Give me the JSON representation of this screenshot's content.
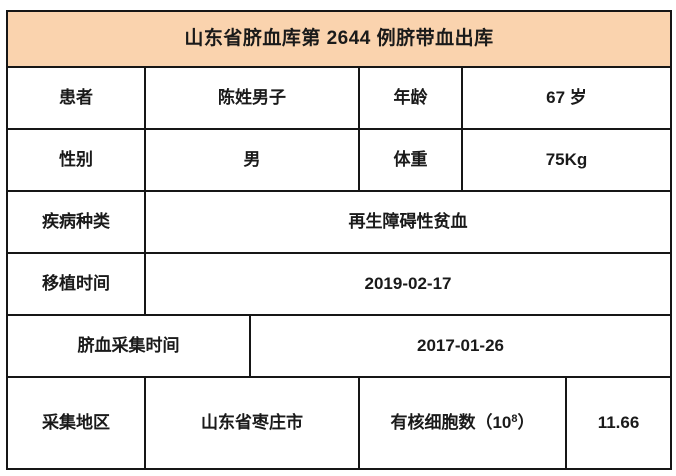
{
  "page": {
    "background_color": "#ffffff"
  },
  "table": {
    "title": "山东省脐血库第 2644 例脐带血出库",
    "colors": {
      "header_background": "#fad3ae",
      "border": "#161616",
      "text": "#1a1a1a",
      "body_background": "#ffffff"
    },
    "fields": {
      "patient": {
        "label": "患者",
        "value": "陈姓男子"
      },
      "age": {
        "label": "年龄",
        "value": "67 岁"
      },
      "gender": {
        "label": "性别",
        "value": "男"
      },
      "weight": {
        "label": "体重",
        "value": "75Kg"
      },
      "disease": {
        "label": "疾病种类",
        "value": "再生障碍性贫血"
      },
      "transplant_date": {
        "label": "移植时间",
        "value": "2019-02-17"
      },
      "collection_date": {
        "label": "脐血采集时间",
        "value": "2017-01-26"
      },
      "collection_region": {
        "label": "采集地区",
        "value": "山东省枣庄市"
      },
      "nucleated_cell_count": {
        "label_prefix": "有核细胞数（10",
        "label_superscript": "8",
        "label_suffix": "）",
        "value": "11.66"
      }
    }
  }
}
